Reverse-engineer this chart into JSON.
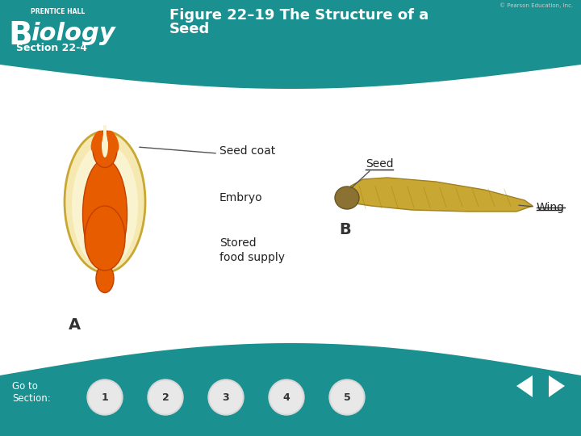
{
  "title_line1": "Figure 22–19 The Structure of a",
  "title_line2": "Seed",
  "section": "Section 22-4",
  "teal_color": "#1a9090",
  "teal_dark": "#147878",
  "white": "#ffffff",
  "label_seed_coat": "Seed coat",
  "label_embryo": "Embryo",
  "label_stored": "Stored\nfood supply",
  "label_seed": "Seed",
  "label_wing": "Wing",
  "label_A": "A",
  "label_B": "B",
  "label_goto": "Go to\nSection:",
  "nav_buttons": [
    "1",
    "2",
    "3",
    "4",
    "5"
  ],
  "copyright": "© Pearson Education, Inc.",
  "bg_color": "#ffffff",
  "body_bg": "#f0f0f0"
}
